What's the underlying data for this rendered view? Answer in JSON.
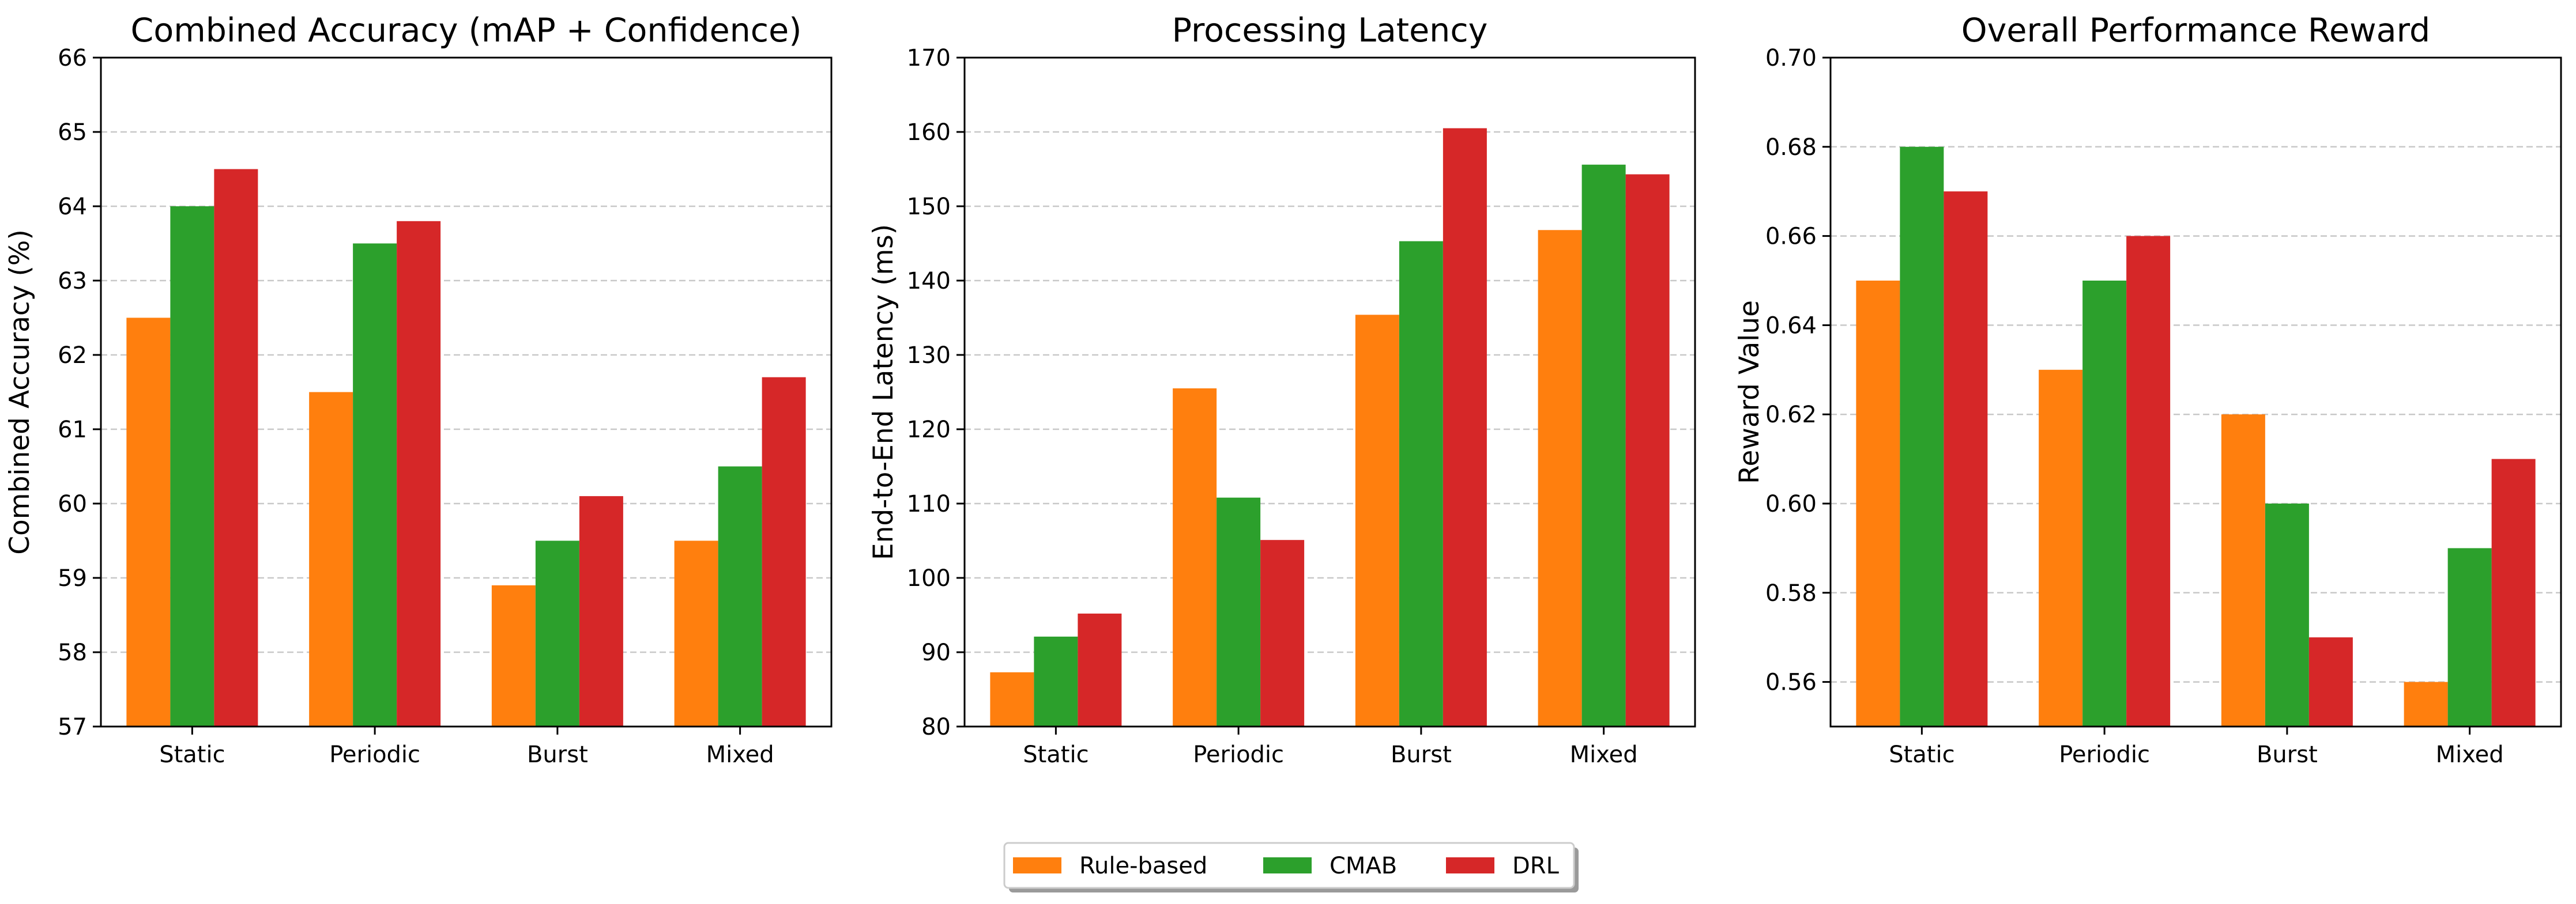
{
  "legend": {
    "placement": "bottom-center",
    "entries": [
      "Rule-based",
      "CMAB",
      "DRL"
    ]
  },
  "colors": {
    "Rule-based": "#ff7f0e",
    "CMAB": "#2ca02c",
    "DRL": "#d62728",
    "grid": "#c8c8c8"
  },
  "chart_data": [
    {
      "type": "bar",
      "title": "Combined Accuracy (mAP + Confidence)",
      "xlabel": "",
      "ylabel": "Combined Accuracy (%)",
      "categories": [
        "Static",
        "Periodic",
        "Burst",
        "Mixed"
      ],
      "ylim": [
        57,
        66
      ],
      "yticks": [
        57,
        58,
        59,
        60,
        61,
        62,
        63,
        64,
        65,
        66
      ],
      "ytick_labels": [
        "57",
        "58",
        "59",
        "60",
        "61",
        "62",
        "63",
        "64",
        "65",
        "66"
      ],
      "grid": "y-dashed",
      "series": [
        {
          "name": "Rule-based",
          "values": [
            62.5,
            61.5,
            58.9,
            59.5
          ]
        },
        {
          "name": "CMAB",
          "values": [
            64.0,
            63.5,
            59.5,
            60.5
          ]
        },
        {
          "name": "DRL",
          "values": [
            64.5,
            63.8,
            60.1,
            61.7
          ]
        }
      ]
    },
    {
      "type": "bar",
      "title": "Processing Latency",
      "xlabel": "",
      "ylabel": "End-to-End Latency (ms)",
      "categories": [
        "Static",
        "Periodic",
        "Burst",
        "Mixed"
      ],
      "ylim": [
        80,
        170
      ],
      "yticks": [
        80,
        90,
        100,
        110,
        120,
        130,
        140,
        150,
        160,
        170
      ],
      "ytick_labels": [
        "80",
        "90",
        "100",
        "110",
        "120",
        "130",
        "140",
        "150",
        "160",
        "170"
      ],
      "grid": "y-dashed",
      "series": [
        {
          "name": "Rule-based",
          "values": [
            87.3,
            125.5,
            135.4,
            146.8
          ]
        },
        {
          "name": "CMAB",
          "values": [
            92.1,
            110.8,
            145.3,
            155.6
          ]
        },
        {
          "name": "DRL",
          "values": [
            95.2,
            105.1,
            160.5,
            154.3
          ]
        }
      ]
    },
    {
      "type": "bar",
      "title": "Overall Performance Reward",
      "xlabel": "",
      "ylabel": "Reward Value",
      "categories": [
        "Static",
        "Periodic",
        "Burst",
        "Mixed"
      ],
      "ylim": [
        0.55,
        0.7
      ],
      "yticks": [
        0.56,
        0.58,
        0.6,
        0.62,
        0.64,
        0.66,
        0.68,
        0.7
      ],
      "ytick_labels": [
        "0.56",
        "0.58",
        "0.60",
        "0.62",
        "0.64",
        "0.66",
        "0.68",
        "0.70"
      ],
      "grid": "y-dashed",
      "series": [
        {
          "name": "Rule-based",
          "values": [
            0.65,
            0.63,
            0.62,
            0.56
          ]
        },
        {
          "name": "CMAB",
          "values": [
            0.68,
            0.65,
            0.6,
            0.59
          ]
        },
        {
          "name": "DRL",
          "values": [
            0.67,
            0.66,
            0.57,
            0.61
          ]
        }
      ]
    }
  ]
}
